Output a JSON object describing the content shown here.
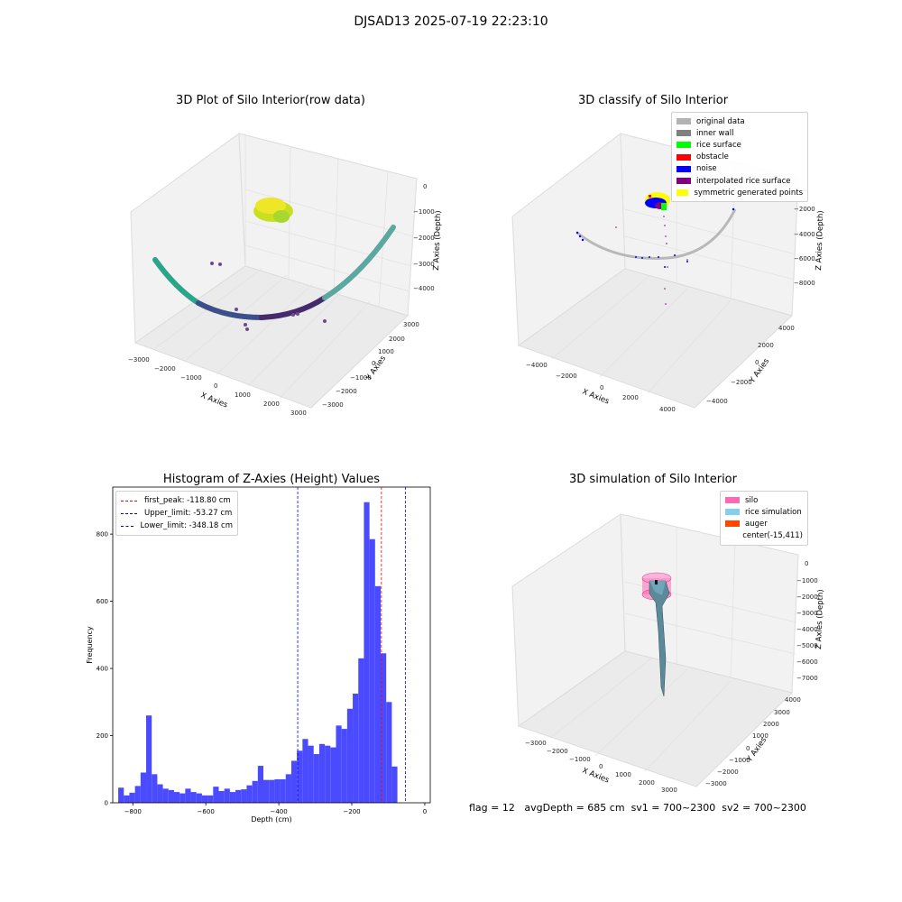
{
  "suptitle": "DJSAD13 2025-07-19 22:23:10",
  "panel1": {
    "title": "3D Plot of Silo Interior(row data)",
    "xlabel": "X Axies",
    "ylabel": "Y Axies",
    "zlabel": "Z Axies (Depth)",
    "xticks": [
      "−3000",
      "−2000",
      "−1000",
      "0",
      "1000",
      "2000",
      "3000"
    ],
    "yticks": [
      "−3000",
      "−2000",
      "−1000",
      "0",
      "1000",
      "2000",
      "3000"
    ],
    "zticks": [
      "0",
      "−1000",
      "−2000",
      "−3000",
      "−4000"
    ]
  },
  "panel2": {
    "title": "3D classify of Silo Interior",
    "xlabel": "X Axies",
    "ylabel": "Y Axies",
    "zlabel": "Z Axies (Depth)",
    "xticks": [
      "−4000",
      "−2000",
      "0",
      "2000",
      "4000"
    ],
    "yticks": [
      "−4000",
      "−2000",
      "0",
      "2000",
      "4000"
    ],
    "zticks": [
      "−2000",
      "−4000",
      "−6000",
      "−8000"
    ],
    "legend": [
      {
        "label": "original data",
        "color": "#b3b3b3"
      },
      {
        "label": "inner wall",
        "color": "#808080"
      },
      {
        "label": "rice surface",
        "color": "#00ff00"
      },
      {
        "label": "obstacle",
        "color": "#ff0000"
      },
      {
        "label": "noise",
        "color": "#0000ff"
      },
      {
        "label": "interpolated rice surface",
        "color": "#800080"
      },
      {
        "label": "symmetric generated points",
        "color": "#ffff00"
      }
    ]
  },
  "panel3": {
    "title": "Histogram of Z-Axies (Height) Values",
    "legend": [
      {
        "label": "first_peak: -118.80 cm",
        "color": "#ff0000"
      },
      {
        "label": "Upper_limit: -53.27 cm",
        "color": "#0000ff"
      },
      {
        "label": "Lower_limit: -348.18 cm",
        "color": "#0000ff"
      }
    ]
  },
  "panel4": {
    "title": "3D simulation of Silo Interior",
    "xlabel": "X Axies",
    "ylabel": "Y Axies",
    "zlabel": "Z Axies (Depth)",
    "xticks": [
      "−3000",
      "−2000",
      "−1000",
      "0",
      "1000",
      "2000",
      "3000"
    ],
    "yticks": [
      "−3000",
      "−2000",
      "−1000",
      "0",
      "1000",
      "2000",
      "3000",
      "4000"
    ],
    "zticks": [
      "0",
      "−1000",
      "−2000",
      "−3000",
      "−4000",
      "−5000",
      "−6000",
      "−7000"
    ],
    "legend": [
      {
        "label": "silo",
        "color": "#ff69b4"
      },
      {
        "label": "rice simulation",
        "color": "#87ceeb"
      },
      {
        "label": "auger",
        "color": "#ff4500"
      },
      {
        "label": "center(-15,411)",
        "color": "transparent"
      }
    ]
  },
  "footer": {
    "flag": "flag = 12",
    "avg": "avgDepth = 685 cm",
    "sv1": "sv1 = 700~2300",
    "sv2": "sv2 = 700~2300"
  },
  "chart_data": {
    "type": "bar",
    "title": "Histogram of Z-Axies (Height) Values",
    "xlabel": "Depth (cm)",
    "ylabel": "Frequency",
    "xlim": [
      -855,
      15
    ],
    "ylim": [
      0,
      940
    ],
    "xticks": [
      -800,
      -600,
      -400,
      -200,
      0
    ],
    "yticks": [
      0,
      200,
      400,
      600,
      800
    ],
    "bin_start": -840,
    "bin_width": 15.3,
    "values": [
      45,
      22,
      30,
      50,
      90,
      260,
      85,
      55,
      42,
      38,
      32,
      28,
      42,
      32,
      28,
      22,
      22,
      48,
      35,
      42,
      32,
      38,
      40,
      52,
      65,
      110,
      68,
      68,
      70,
      70,
      85,
      125,
      155,
      190,
      170,
      145,
      175,
      170,
      165,
      230,
      220,
      280,
      325,
      430,
      895,
      785,
      645,
      445,
      300,
      108
    ],
    "vlines": [
      {
        "name": "first_peak",
        "x": -118.8,
        "color": "#ff0000"
      },
      {
        "name": "Upper_limit",
        "x": -53.27,
        "color": "#0000ff"
      },
      {
        "name": "Lower_limit",
        "x": -348.18,
        "color": "#0000ff"
      }
    ],
    "bar_color": "#4a4aff"
  }
}
